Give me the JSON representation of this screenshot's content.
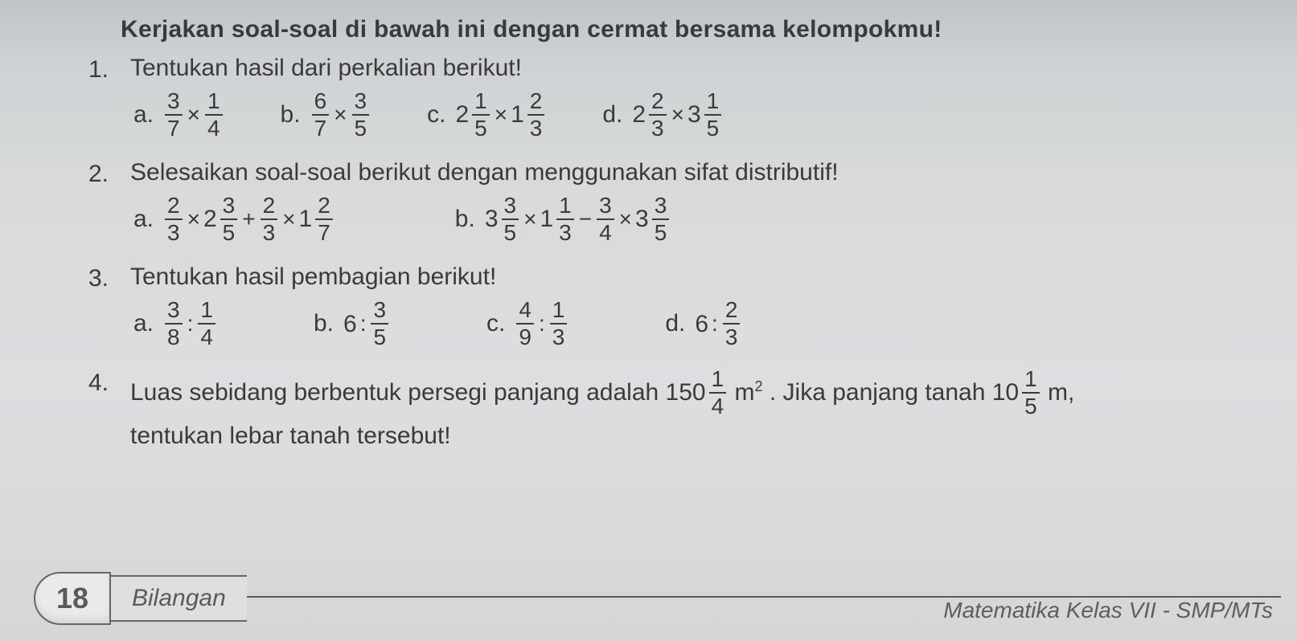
{
  "instruction": "Kerjakan soal-soal di bawah ini dengan cermat bersama kelompokmu!",
  "questions": {
    "q1": {
      "num": "1.",
      "title": "Tentukan hasil dari perkalian berikut!",
      "a": {
        "label": "a.",
        "f1n": "3",
        "f1d": "7",
        "op": "×",
        "f2n": "1",
        "f2d": "4"
      },
      "b": {
        "label": "b.",
        "f1n": "6",
        "f1d": "7",
        "op": "×",
        "f2n": "3",
        "f2d": "5"
      },
      "c": {
        "label": "c.",
        "w1": "2",
        "f1n": "1",
        "f1d": "5",
        "op": "×",
        "w2": "1",
        "f2n": "2",
        "f2d": "3"
      },
      "d": {
        "label": "d.",
        "w1": "2",
        "f1n": "2",
        "f1d": "3",
        "op": "×",
        "w2": "3",
        "f2n": "1",
        "f2d": "5"
      }
    },
    "q2": {
      "num": "2.",
      "title": "Selesaikan soal-soal berikut dengan menggunakan sifat distributif!",
      "a": {
        "label": "a.",
        "t1": {
          "n": "2",
          "d": "3"
        },
        "op1": "×",
        "t2": {
          "w": "2",
          "n": "3",
          "d": "5"
        },
        "op2": "+",
        "t3": {
          "n": "2",
          "d": "3"
        },
        "op3": "×",
        "t4": {
          "w": "1",
          "n": "2",
          "d": "7"
        }
      },
      "b": {
        "label": "b.",
        "t1": {
          "w": "3",
          "n": "3",
          "d": "5"
        },
        "op1": "×",
        "t2": {
          "w": "1",
          "n": "1",
          "d": "3"
        },
        "op2": "−",
        "t3": {
          "n": "3",
          "d": "4"
        },
        "op3": "×",
        "t4": {
          "w": "3",
          "n": "3",
          "d": "5"
        }
      }
    },
    "q3": {
      "num": "3.",
      "title": "Tentukan hasil pembagian berikut!",
      "a": {
        "label": "a.",
        "f1n": "3",
        "f1d": "8",
        "op": ":",
        "f2n": "1",
        "f2d": "4"
      },
      "b": {
        "label": "b.",
        "lhs": "6",
        "op": ":",
        "f2n": "3",
        "f2d": "5"
      },
      "c": {
        "label": "c.",
        "f1n": "4",
        "f1d": "9",
        "op": ":",
        "f2n": "1",
        "f2d": "3"
      },
      "d": {
        "label": "d.",
        "lhs": "6",
        "op": ":",
        "f2n": "2",
        "f2d": "3"
      }
    },
    "q4": {
      "num": "4.",
      "pre": "Luas sebidang berbentuk persegi panjang adalah ",
      "area": {
        "w": "150",
        "n": "1",
        "d": "4"
      },
      "unit1a": " m",
      "unit1b": "2",
      "mid": ". Jika panjang tanah ",
      "length": {
        "w": "10",
        "n": "1",
        "d": "5"
      },
      "unit2": " m,",
      "post": "tentukan lebar tanah tersebut!"
    }
  },
  "footer": {
    "page": "18",
    "section": "Bilangan",
    "right": "Matematika  Kelas VII - SMP/MTs"
  },
  "colors": {
    "text": "#3a3a3a",
    "rule": "#5a5a5a",
    "bg_top": "#c0c4c6",
    "bg_bottom": "#d4d6d7"
  }
}
